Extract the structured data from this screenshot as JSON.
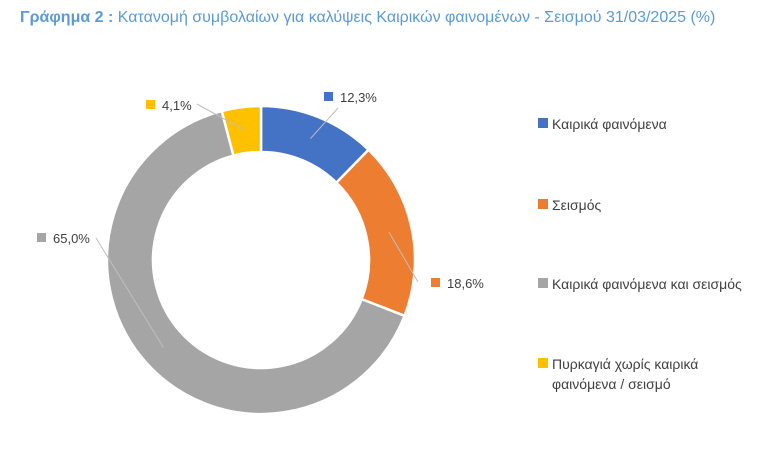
{
  "chart_data": {
    "type": "pie",
    "variant": "donut",
    "title_prefix": "Γράφημα 2 :",
    "title": "Κατανομή συμβολαίων για καλύψεις Καιρικών φαινομένων - Σεισμού 31/03/2025 (%)",
    "categories": [
      "Καιρικά φαινόμενα",
      "Σεισμός",
      "Καιρικά φαινόμενα και σεισμός",
      "Πυρκαγιά χωρίς καιρικά φαινόμενα / σεισμό"
    ],
    "values": [
      12.3,
      18.6,
      65.0,
      4.1
    ],
    "data_labels": [
      "12,3%",
      "18,6%",
      "65,0%",
      "4,1%"
    ],
    "colors": [
      "#4472c4",
      "#ed7d31",
      "#a5a5a5",
      "#ffc000"
    ],
    "legend_position": "right"
  }
}
